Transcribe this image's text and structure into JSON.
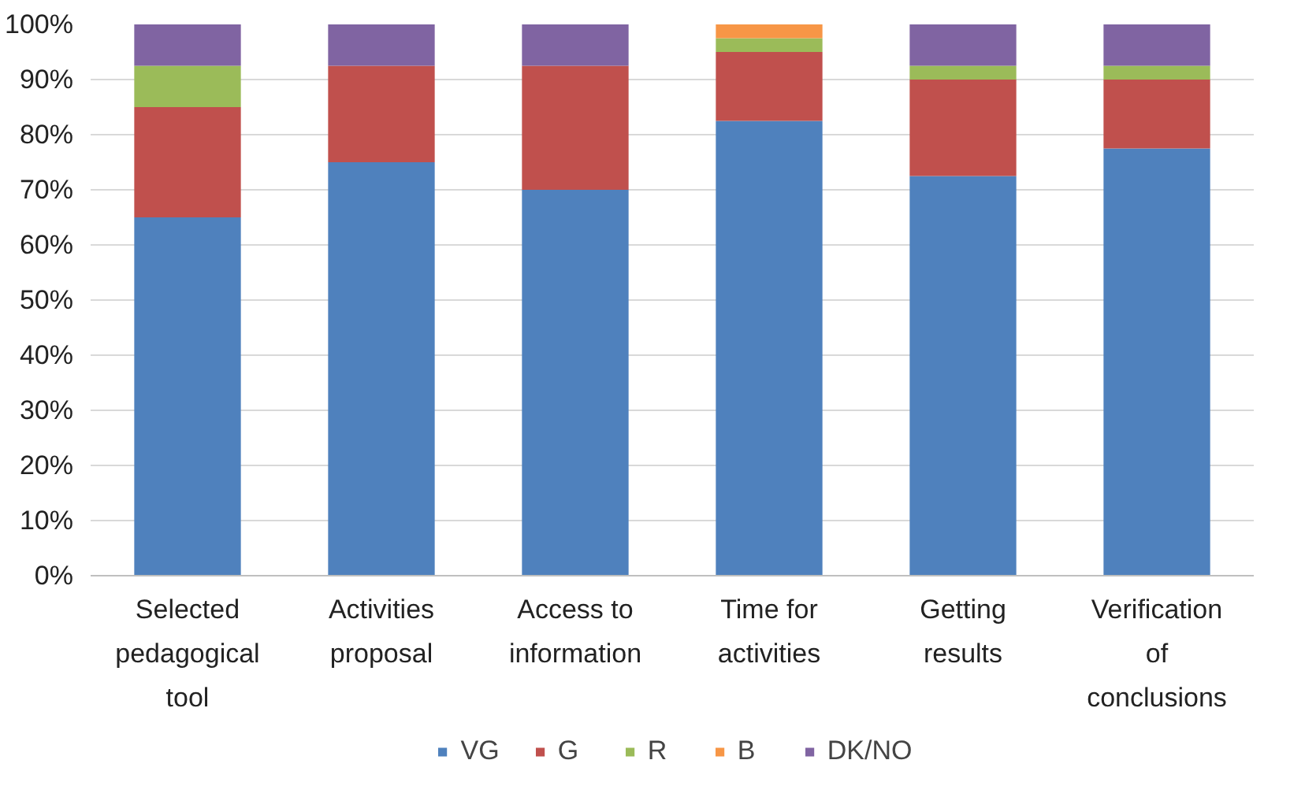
{
  "chart_data": {
    "type": "bar",
    "stacked": true,
    "categories": [
      "Selected pedagogical tool",
      "Activities proposal",
      "Access to information",
      "Time for activities",
      "Getting results",
      "Verification of conclusions"
    ],
    "series": [
      {
        "name": "VG",
        "color": "#4f81bd",
        "values": [
          65,
          75,
          70,
          82.5,
          72.5,
          77.5
        ]
      },
      {
        "name": "G",
        "color": "#c0504d",
        "values": [
          20,
          17.5,
          22.5,
          12.5,
          17.5,
          12.5
        ]
      },
      {
        "name": "R",
        "color": "#9bbb59",
        "values": [
          7.5,
          0,
          0,
          2.5,
          2.5,
          2.5
        ]
      },
      {
        "name": "B",
        "color": "#f79646",
        "values": [
          0,
          0,
          0,
          2.5,
          0,
          0
        ]
      },
      {
        "name": "DK/NO",
        "color": "#8064a2",
        "values": [
          7.5,
          7.5,
          7.5,
          0,
          7.5,
          7.5
        ]
      }
    ],
    "ylim": [
      0,
      100
    ],
    "yticks": [
      {
        "value": 0,
        "label": "0%"
      },
      {
        "value": 10,
        "label": "10%"
      },
      {
        "value": 20,
        "label": "20%"
      },
      {
        "value": 30,
        "label": "30%"
      },
      {
        "value": 40,
        "label": "40%"
      },
      {
        "value": 50,
        "label": "50%"
      },
      {
        "value": 60,
        "label": "60%"
      },
      {
        "value": 70,
        "label": "70%"
      },
      {
        "value": 80,
        "label": "80%"
      },
      {
        "value": 90,
        "label": "90%"
      },
      {
        "value": 100,
        "label": "100%"
      }
    ],
    "grid": "y",
    "legend": "bottom"
  }
}
